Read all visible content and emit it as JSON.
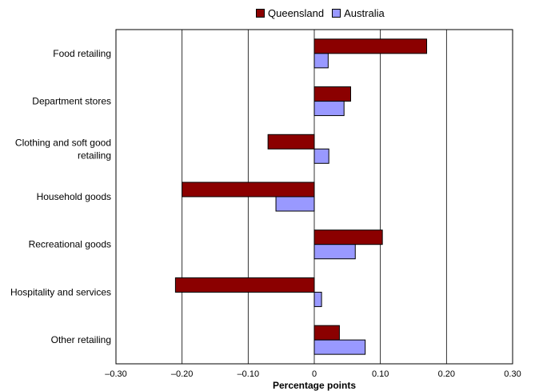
{
  "chart_data": {
    "type": "bar",
    "orientation": "horizontal",
    "categories": [
      "Food retailing",
      "Department stores",
      "Clothing and soft good retailing",
      "Household goods",
      "Recreational goods",
      "Hospitality and services",
      "Other retailing"
    ],
    "series": [
      {
        "name": "Queensland",
        "values": [
          0.17,
          0.055,
          -0.07,
          -0.2,
          0.103,
          -0.21,
          0.038
        ]
      },
      {
        "name": "Australia",
        "values": [
          0.021,
          0.045,
          0.022,
          -0.058,
          0.062,
          0.011,
          0.077
        ]
      }
    ],
    "xlabel": "Percentage points",
    "ylabel": "",
    "xlim": [
      -0.3,
      0.3
    ],
    "xticks": [
      -0.3,
      -0.2,
      -0.1,
      0,
      0.1,
      0.2,
      0.3
    ],
    "xtick_labels": [
      "–0.30",
      "–0.20",
      "–0.10",
      "0",
      "0.10",
      "0.20",
      "0.30"
    ],
    "grid": "vertical",
    "legend_position": "top"
  },
  "colors": {
    "Queensland": "#8b0000",
    "Australia": "#9999ff"
  },
  "legend": {
    "queensland": "Queensland",
    "australia": "Australia"
  }
}
